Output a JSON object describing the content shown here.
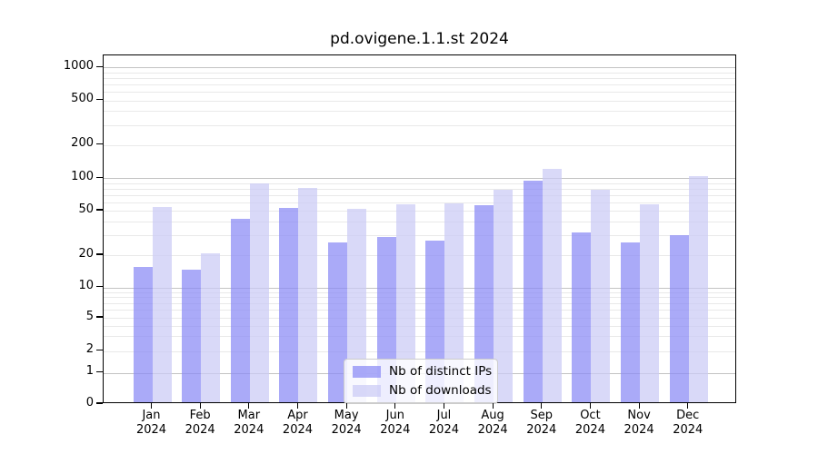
{
  "chart_data": {
    "type": "bar",
    "title": "pd.ovigene.1.1.st 2024",
    "categories": [
      "Jan",
      "Feb",
      "Mar",
      "Apr",
      "May",
      "Jun",
      "Jul",
      "Aug",
      "Sep",
      "Oct",
      "Nov",
      "Dec"
    ],
    "year_label": "2024",
    "series": [
      {
        "name": "Nb of distinct IPs",
        "values": [
          15,
          14,
          41,
          51,
          25,
          28,
          26,
          54,
          92,
          31,
          25,
          29
        ]
      },
      {
        "name": "Nb of downloads",
        "values": [
          52,
          20,
          86,
          78,
          50,
          55,
          56,
          75,
          118,
          75,
          55,
          100
        ]
      }
    ],
    "y_ticks": [
      0,
      1,
      2,
      5,
      10,
      20,
      50,
      100,
      200,
      500,
      1000
    ],
    "y_grid_major": [
      1,
      10,
      100,
      1000
    ],
    "y_grid_minor": [
      2,
      3,
      4,
      5,
      6,
      7,
      8,
      9,
      20,
      30,
      40,
      50,
      60,
      70,
      80,
      90,
      200,
      300,
      400,
      500,
      600,
      700,
      800,
      900
    ],
    "y_scale": "symlog",
    "ylim": [
      0,
      1400
    ],
    "grid": true,
    "legend_position": "lower center"
  },
  "colors": {
    "bar_ips": "#8989f5",
    "bar_ips_alpha": 0.72,
    "bar_downloads": "#cacaf5",
    "bar_downloads_alpha": 0.72,
    "grid_major": "#c3c3c3",
    "grid_minor": "#e9e9e9",
    "axis": "#000000",
    "background": "#ffffff"
  }
}
